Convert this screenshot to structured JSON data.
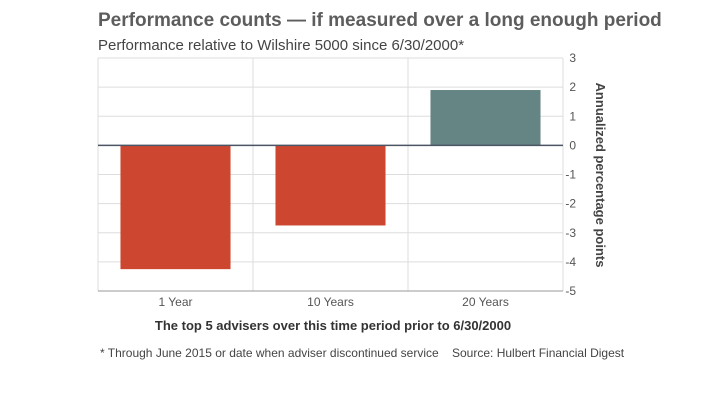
{
  "chart_data": {
    "type": "bar",
    "title": "Performance counts — if measured over a long enough period",
    "subtitle": "Performance relative to Wilshire 5000 since 6/30/2000*",
    "categories": [
      "1 Year",
      "10 Years",
      "20 Years"
    ],
    "values": [
      -4.25,
      -2.75,
      1.9
    ],
    "bar_colors": [
      "#cc4630",
      "#cc4630",
      "#648583"
    ],
    "ylabel": "Annualized percentage points",
    "ylim": [
      -5,
      3
    ],
    "yticks": [
      "3",
      "2",
      "1",
      "0",
      "-1",
      "-2",
      "-3",
      "-4",
      "-5"
    ],
    "ytick_values": [
      3,
      2,
      1,
      0,
      -1,
      -2,
      -3,
      -4,
      -5
    ],
    "xlabel": "The top 5 advisers over this time period prior to 6/30/2000",
    "grid": true,
    "legend": "none"
  },
  "footnote": "* Through June 2015 or date when adviser discontinued service",
  "source": "Source: Hulbert Financial Digest"
}
